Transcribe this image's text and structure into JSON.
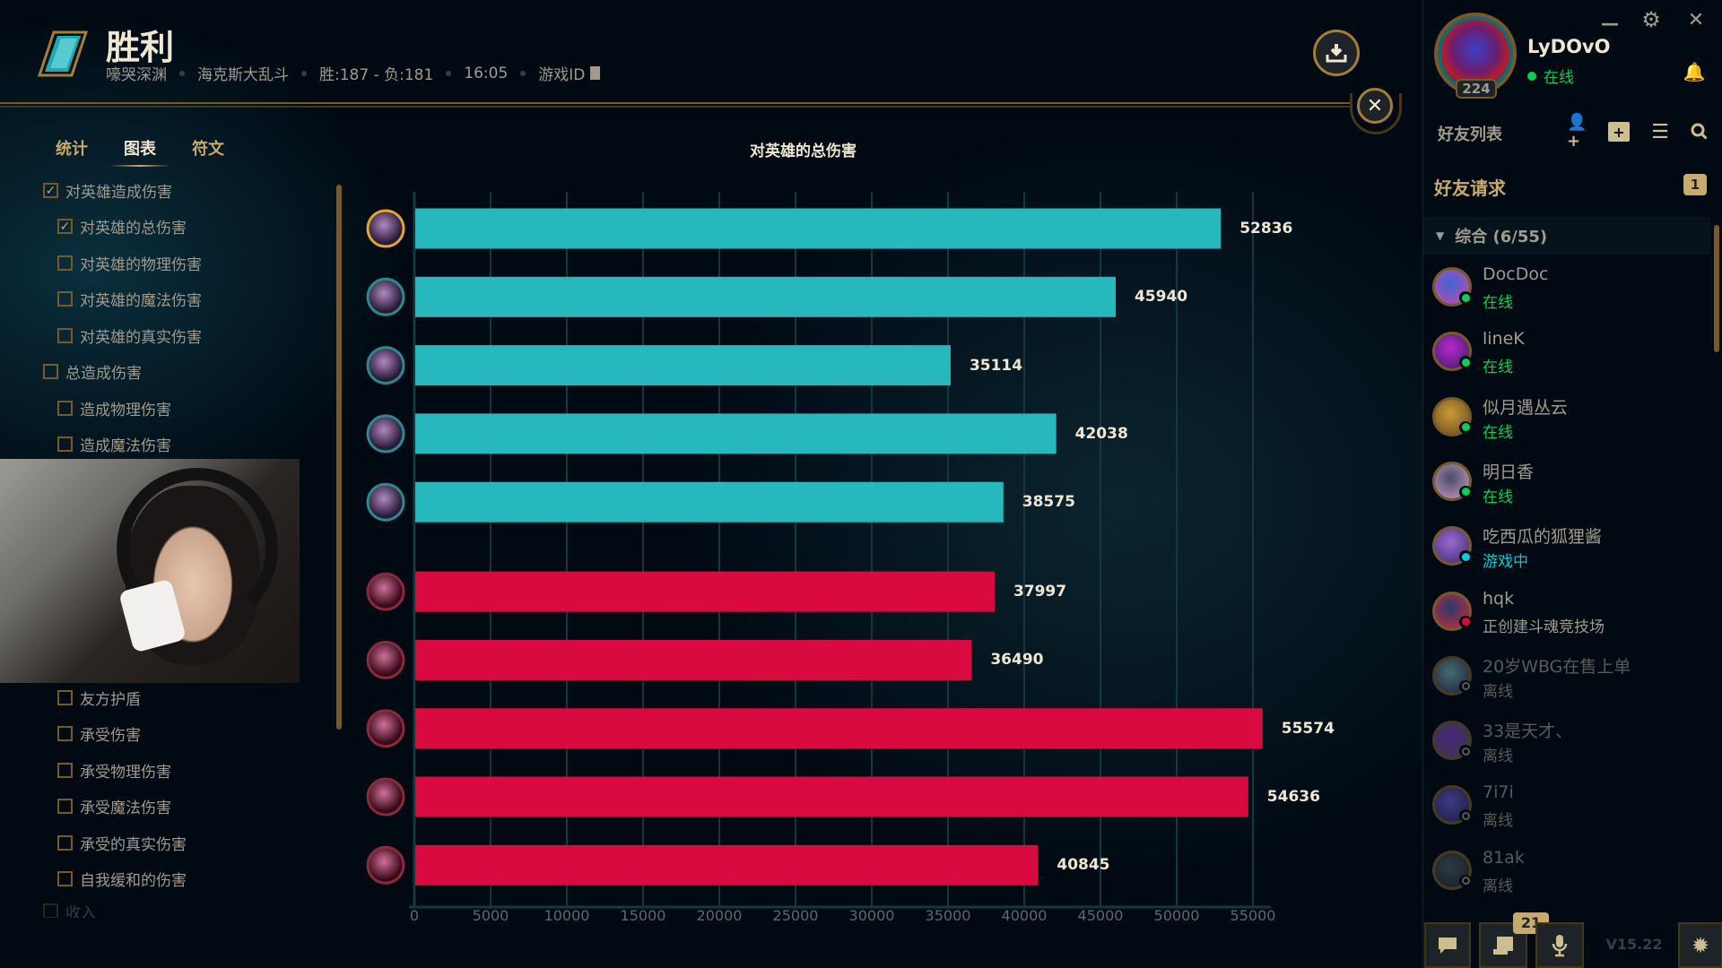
{
  "header": {
    "result": "胜利",
    "map": "嚎哭深渊",
    "mode": "海克斯大乱斗",
    "record": "胜:187 - 负:181",
    "duration": "16:05",
    "game_id_label": "游戏ID"
  },
  "tabs": [
    {
      "label": "统计",
      "active": false
    },
    {
      "label": "图表",
      "active": true
    },
    {
      "label": "符文",
      "active": false
    }
  ],
  "filters": [
    {
      "label": "对英雄造成伤害",
      "checked": true
    },
    {
      "label": "对英雄的总伤害",
      "checked": true
    },
    {
      "label": "对英雄的物理伤害",
      "checked": false
    },
    {
      "label": "对英雄的魔法伤害",
      "checked": false
    },
    {
      "label": "对英雄的真实伤害",
      "checked": false
    },
    {
      "label": "总造成伤害",
      "checked": false
    },
    {
      "label": "造成物理伤害",
      "checked": false
    },
    {
      "label": "造成魔法伤害",
      "checked": false
    },
    {
      "label": "友方护盾",
      "checked": false
    },
    {
      "label": "承受伤害",
      "checked": false
    },
    {
      "label": "承受物理伤害",
      "checked": false
    },
    {
      "label": "承受魔法伤害",
      "checked": false
    },
    {
      "label": "承受的真实伤害",
      "checked": false
    },
    {
      "label": "自我缓和的伤害",
      "checked": false
    },
    {
      "label": "收入",
      "checked": false
    }
  ],
  "chart_data": {
    "type": "bar",
    "orientation": "horizontal",
    "title": "对英雄的总伤害",
    "xlim": [
      0,
      55000
    ],
    "xticks": [
      0,
      5000,
      10000,
      15000,
      20000,
      25000,
      30000,
      35000,
      40000,
      45000,
      50000,
      55000
    ],
    "grid": true,
    "series": [
      {
        "team": "blue",
        "color": "#27b8bd",
        "values": [
          52836,
          45940,
          35114,
          42038,
          38575
        ]
      },
      {
        "team": "red",
        "color": "#d90a40",
        "values": [
          37997,
          36490,
          55574,
          54636,
          40845
        ]
      }
    ]
  },
  "profile": {
    "name": "LyDOvO",
    "status": "在线",
    "level": "224"
  },
  "friends_panel": {
    "title": "好友列表",
    "requests_label": "好友请求",
    "requests_count": "1",
    "group_label": "综合 (6/55)",
    "friends": [
      {
        "name": "DocDoc",
        "status": "在线",
        "state": "online"
      },
      {
        "name": "lineK",
        "status": "在线",
        "state": "online"
      },
      {
        "name": "似月遇丛云",
        "status": "在线",
        "state": "online"
      },
      {
        "name": "明日香",
        "status": "在线",
        "state": "online"
      },
      {
        "name": "吃西瓜的狐狸酱",
        "status": "游戏中",
        "state": "ingame"
      },
      {
        "name": "hqk",
        "status": "正创建斗魂竞技场",
        "state": "busy"
      },
      {
        "name": "20岁WBG在售上单",
        "status": "离线",
        "state": "offline"
      },
      {
        "name": "33是天才、",
        "status": "离线",
        "state": "offline"
      },
      {
        "name": "7i7i",
        "status": "离线",
        "state": "offline"
      },
      {
        "name": "81ak",
        "status": "离线",
        "state": "offline"
      }
    ]
  },
  "bottom_bar": {
    "notes_badge": "21",
    "version": "V15.22"
  },
  "colors": {
    "gold": "#c8aa6e",
    "online": "#0acf52",
    "ingame": "#0ac8d9",
    "busy": "#d90a40",
    "blue_team": "#27b8bd",
    "red_team": "#d90a40"
  }
}
